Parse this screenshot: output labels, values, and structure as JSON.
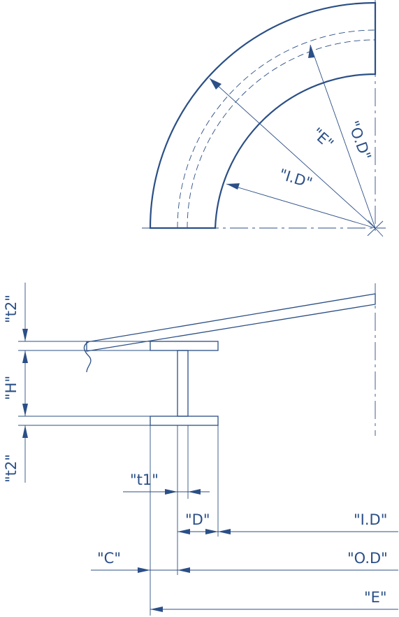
{
  "colors": {
    "line": "#2b4f86",
    "ring_fill": "#d6e1ec",
    "beam_fill": "#a4a4a4",
    "background": "#ffffff"
  },
  "top_view": {
    "labels": {
      "od": "\"O.D\"",
      "e": "\"E\"",
      "id": "\"I.D\""
    }
  },
  "section_view": {
    "labels": {
      "t2_top": "\"t2\"",
      "h": "\"H\"",
      "t2_bottom": "\"t2\"",
      "t1": "\"t1\"",
      "d": "\"D\"",
      "id": "\"I.D\"",
      "c": "\"C\"",
      "od": "\"O.D\"",
      "e": "\"E\""
    }
  }
}
